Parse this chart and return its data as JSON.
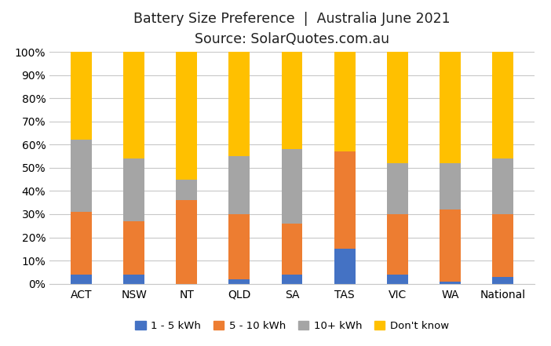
{
  "title_line1": "Battery Size Preference  |  Australia June 2021",
  "title_line2": "Source: SolarQuotes.com.au",
  "categories": [
    "ACT",
    "NSW",
    "NT",
    "QLD",
    "SA",
    "TAS",
    "VIC",
    "WA",
    "National"
  ],
  "series": {
    "1 - 5 kWh": [
      4,
      4,
      0,
      2,
      4,
      15,
      4,
      1,
      3
    ],
    "5 - 10 kWh": [
      27,
      23,
      36,
      28,
      22,
      42,
      26,
      31,
      27
    ],
    "10+ kWh": [
      31,
      27,
      9,
      25,
      32,
      0,
      22,
      20,
      24
    ],
    "Don't know": [
      38,
      46,
      55,
      45,
      42,
      43,
      48,
      48,
      46
    ]
  },
  "colors": {
    "1 - 5 kWh": "#4472c4",
    "5 - 10 kWh": "#ed7d31",
    "10+ kWh": "#a5a5a5",
    "Don't know": "#ffc000"
  },
  "ylim": [
    0,
    100
  ],
  "ytick_labels": [
    "0%",
    "10%",
    "20%",
    "30%",
    "40%",
    "50%",
    "60%",
    "70%",
    "80%",
    "90%",
    "100%"
  ],
  "ytick_values": [
    0,
    10,
    20,
    30,
    40,
    50,
    60,
    70,
    80,
    90,
    100
  ],
  "background_color": "#ffffff",
  "grid_color": "#c8c8c8",
  "title_fontsize": 12.5,
  "axis_fontsize": 10,
  "legend_fontsize": 9.5,
  "bar_width": 0.4
}
